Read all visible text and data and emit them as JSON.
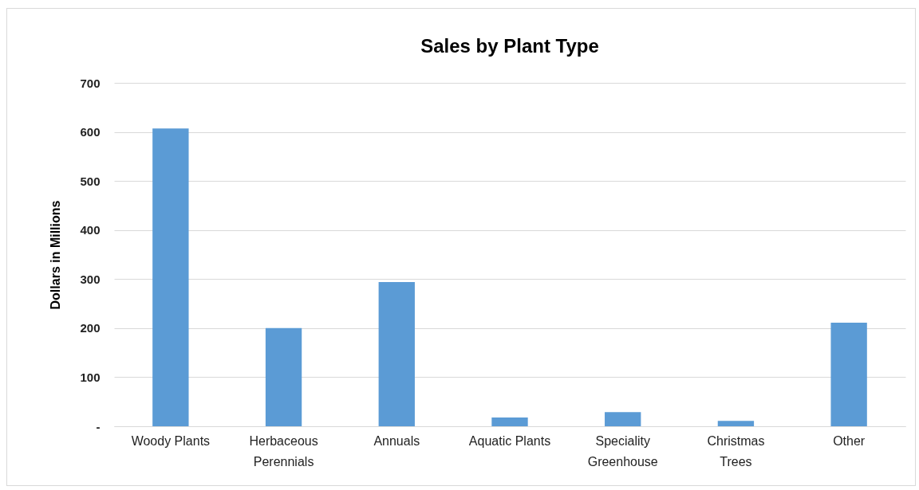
{
  "chart_data": {
    "type": "bar",
    "title": "Sales by Plant Type",
    "ylabel": "Dollars in Millions",
    "categories": [
      "Woody Plants",
      "Herbaceous Perennials",
      "Annuals",
      "Aquatic Plants",
      "Speciality Greenhouse",
      "Christmas Trees",
      "Other"
    ],
    "values": [
      607,
      200,
      294,
      18,
      29,
      11,
      211
    ],
    "color": "#5b9bd5",
    "ylim": [
      0,
      700
    ],
    "yticks": [
      {
        "value": 0,
        "label": "-"
      },
      100,
      200,
      300,
      400,
      500,
      600,
      700
    ],
    "grid": "y"
  }
}
